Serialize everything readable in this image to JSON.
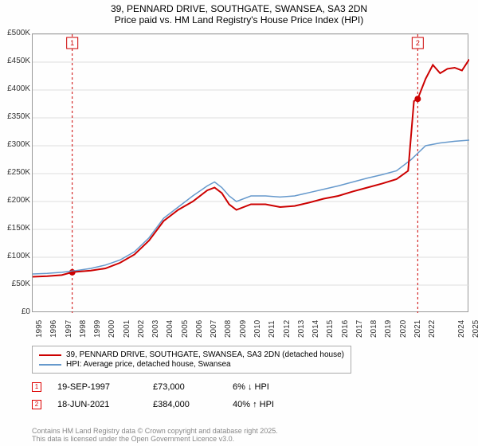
{
  "title_line1": "39, PENNARD DRIVE, SOUTHGATE, SWANSEA, SA3 2DN",
  "title_line2": "Price paid vs. HM Land Registry's House Price Index (HPI)",
  "chart": {
    "type": "line",
    "xlim": [
      1995,
      2025
    ],
    "ylim": [
      0,
      500000
    ],
    "ytick_step": 50000,
    "ylabels": [
      "£0",
      "£50K",
      "£100K",
      "£150K",
      "£200K",
      "£250K",
      "£300K",
      "£350K",
      "£400K",
      "£450K",
      "£500K"
    ],
    "xlabels": [
      "1995",
      "1996",
      "1997",
      "1998",
      "1999",
      "2000",
      "2001",
      "2002",
      "2003",
      "2004",
      "2005",
      "2006",
      "2007",
      "2008",
      "2009",
      "2010",
      "2011",
      "2012",
      "2013",
      "2014",
      "2015",
      "2016",
      "2017",
      "2018",
      "2019",
      "2020",
      "2021",
      "2022",
      "2024",
      "2025"
    ],
    "grid_color": "#dddddd",
    "background_color": "#fefefe",
    "marker_color": "#cc0000",
    "series": [
      {
        "name": "property",
        "label": "39, PENNARD DRIVE, SOUTHGATE, SWANSEA, SA3 2DN (detached house)",
        "color": "#cc0000",
        "width": 2,
        "data": [
          [
            1995,
            65000
          ],
          [
            1996,
            66000
          ],
          [
            1997,
            68000
          ],
          [
            1997.7,
            73000
          ],
          [
            1998,
            74000
          ],
          [
            1999,
            76000
          ],
          [
            2000,
            80000
          ],
          [
            2001,
            90000
          ],
          [
            2002,
            105000
          ],
          [
            2003,
            130000
          ],
          [
            2004,
            165000
          ],
          [
            2005,
            185000
          ],
          [
            2006,
            200000
          ],
          [
            2007,
            220000
          ],
          [
            2007.5,
            225000
          ],
          [
            2008,
            215000
          ],
          [
            2008.5,
            195000
          ],
          [
            2009,
            185000
          ],
          [
            2010,
            195000
          ],
          [
            2011,
            195000
          ],
          [
            2012,
            190000
          ],
          [
            2013,
            192000
          ],
          [
            2014,
            198000
          ],
          [
            2015,
            205000
          ],
          [
            2016,
            210000
          ],
          [
            2017,
            218000
          ],
          [
            2018,
            225000
          ],
          [
            2019,
            232000
          ],
          [
            2020,
            240000
          ],
          [
            2020.8,
            255000
          ],
          [
            2021.2,
            380000
          ],
          [
            2021.46,
            384000
          ],
          [
            2022,
            420000
          ],
          [
            2022.5,
            445000
          ],
          [
            2023,
            430000
          ],
          [
            2023.5,
            438000
          ],
          [
            2024,
            440000
          ],
          [
            2024.5,
            435000
          ],
          [
            2025,
            455000
          ]
        ]
      },
      {
        "name": "hpi",
        "label": "HPI: Average price, detached house, Swansea",
        "color": "#6699cc",
        "width": 1.5,
        "data": [
          [
            1995,
            70000
          ],
          [
            1996,
            71000
          ],
          [
            1997,
            73000
          ],
          [
            1998,
            76000
          ],
          [
            1999,
            80000
          ],
          [
            2000,
            86000
          ],
          [
            2001,
            95000
          ],
          [
            2002,
            110000
          ],
          [
            2003,
            135000
          ],
          [
            2004,
            170000
          ],
          [
            2005,
            190000
          ],
          [
            2006,
            210000
          ],
          [
            2007,
            228000
          ],
          [
            2007.5,
            235000
          ],
          [
            2008,
            225000
          ],
          [
            2008.5,
            210000
          ],
          [
            2009,
            200000
          ],
          [
            2010,
            210000
          ],
          [
            2011,
            210000
          ],
          [
            2012,
            208000
          ],
          [
            2013,
            210000
          ],
          [
            2014,
            216000
          ],
          [
            2015,
            222000
          ],
          [
            2016,
            228000
          ],
          [
            2017,
            235000
          ],
          [
            2018,
            242000
          ],
          [
            2019,
            248000
          ],
          [
            2020,
            255000
          ],
          [
            2021,
            275000
          ],
          [
            2022,
            300000
          ],
          [
            2023,
            305000
          ],
          [
            2024,
            308000
          ],
          [
            2025,
            310000
          ]
        ]
      }
    ],
    "markers": [
      {
        "id": "1",
        "x": 1997.72,
        "date": "19-SEP-1997",
        "price": "£73,000",
        "diff": "6% ↓ HPI",
        "y": 73000
      },
      {
        "id": "2",
        "x": 2021.46,
        "date": "18-JUN-2021",
        "price": "£384,000",
        "diff": "40% ↑ HPI",
        "y": 384000
      }
    ]
  },
  "legend": {
    "s1": "39, PENNARD DRIVE, SOUTHGATE, SWANSEA, SA3 2DN (detached house)",
    "s2": "HPI: Average price, detached house, Swansea"
  },
  "credit": "Contains HM Land Registry data © Crown copyright and database right 2025.\nThis data is licensed under the Open Government Licence v3.0."
}
